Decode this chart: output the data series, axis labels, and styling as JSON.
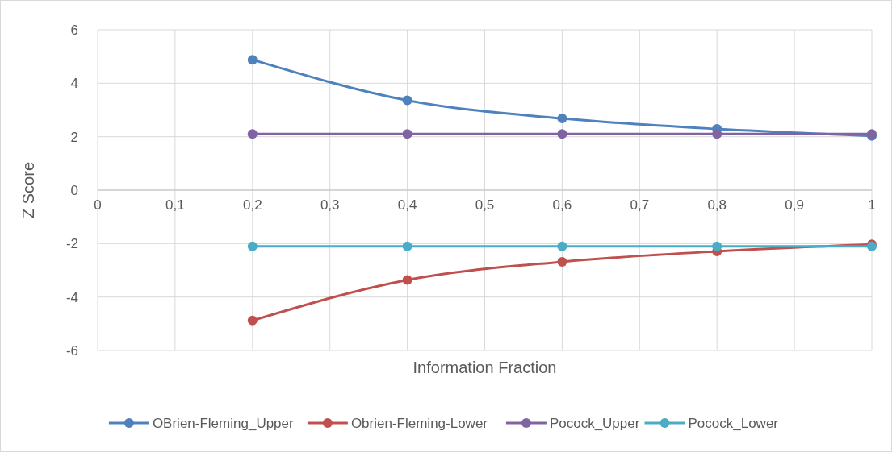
{
  "chart_data": {
    "type": "line",
    "xlabel": "Information Fraction",
    "ylabel": "Z Score",
    "x": [
      0.2,
      0.4,
      0.6,
      0.8,
      1
    ],
    "series": [
      {
        "name": "OBrien-Fleming_Upper",
        "color": "#4f81bd",
        "values": [
          4.88,
          3.36,
          2.68,
          2.29,
          2.03
        ]
      },
      {
        "name": "Obrien-Fleming-Lower",
        "color": "#c0504d",
        "values": [
          -4.88,
          -3.36,
          -2.68,
          -2.29,
          -2.03
        ]
      },
      {
        "name": "Pocock_Upper",
        "color": "#8064a2",
        "values": [
          2.1,
          2.1,
          2.1,
          2.1,
          2.1
        ]
      },
      {
        "name": "Pocock_Lower",
        "color": "#4bacc6",
        "values": [
          -2.1,
          -2.1,
          -2.1,
          -2.1,
          -2.1
        ]
      }
    ],
    "xlim": [
      0,
      1
    ],
    "xticks": [
      0,
      {
        "value": 0.1,
        "label": "0,1"
      },
      {
        "value": 0.2,
        "label": "0,2"
      },
      {
        "value": 0.3,
        "label": "0,3"
      },
      {
        "value": 0.4,
        "label": "0,4"
      },
      {
        "value": 0.5,
        "label": "0,5"
      },
      {
        "value": 0.6,
        "label": "0,6"
      },
      {
        "value": 0.7,
        "label": "0,7"
      },
      {
        "value": 0.8,
        "label": "0,8"
      },
      {
        "value": 0.9,
        "label": "0,9"
      },
      1
    ],
    "ylim": [
      -6,
      6
    ],
    "yticks": [
      -6,
      -4,
      -2,
      0,
      2,
      4,
      6
    ],
    "grid": true,
    "legend": "bottom",
    "marker": "circle",
    "line_style": "solid"
  }
}
